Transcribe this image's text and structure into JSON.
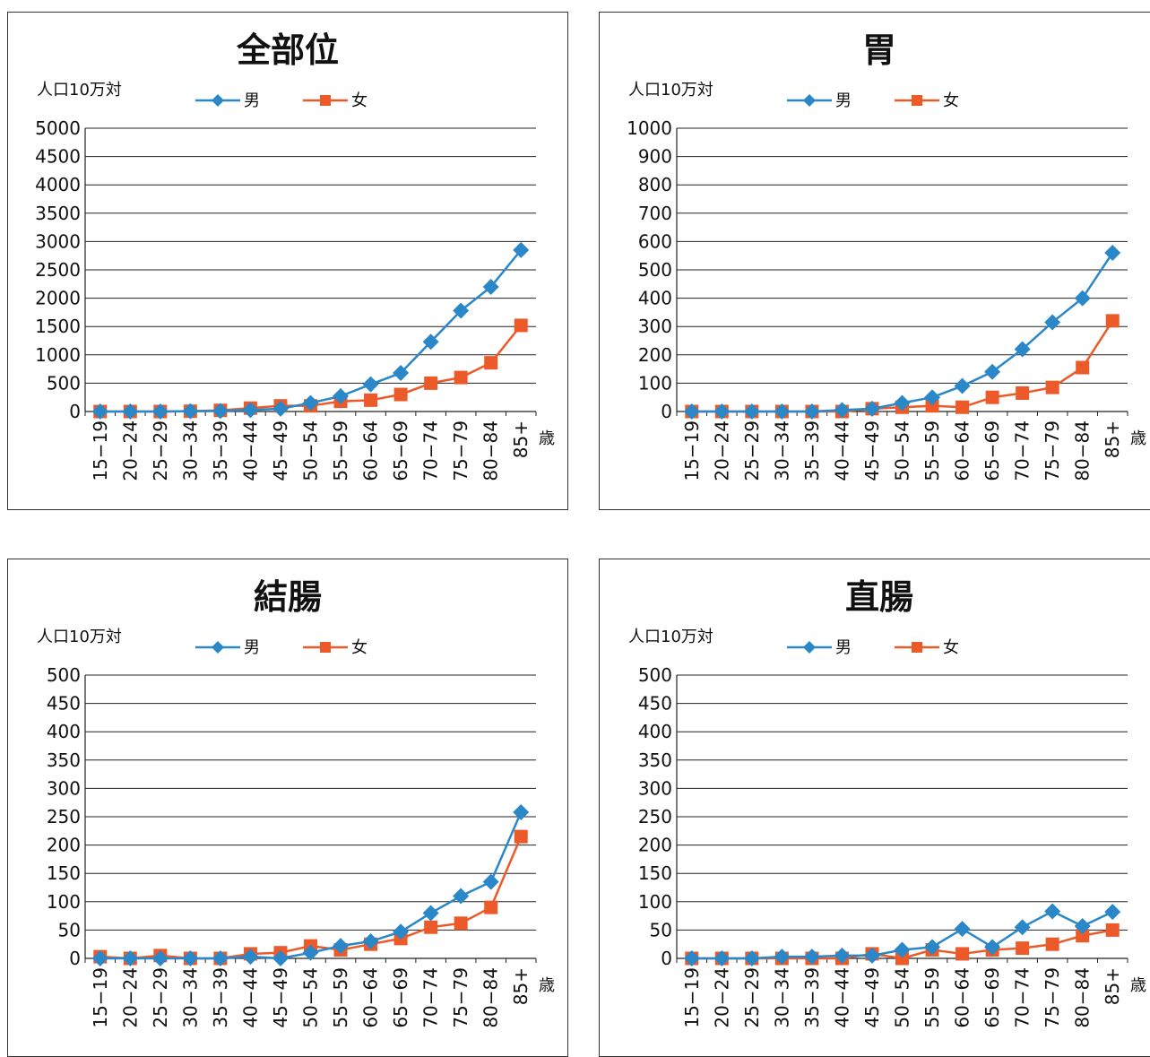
{
  "chart_data": [
    {
      "type": "line",
      "title": "全部位",
      "ylabel": "人口10万対",
      "xunit": "歳",
      "ylim": [
        0,
        5000
      ],
      "yticks": [
        0,
        500,
        1000,
        1500,
        2000,
        2500,
        3000,
        3500,
        4000,
        4500,
        5000
      ],
      "categories": [
        "15−19",
        "20−24",
        "25−29",
        "30−34",
        "35−39",
        "40−44",
        "45−49",
        "50−54",
        "55−59",
        "60−64",
        "65−69",
        "70−74",
        "75−79",
        "80−84",
        "85+"
      ],
      "legend_position": "top",
      "grid": true,
      "series": [
        {
          "name": "男",
          "color": "#2a87c8",
          "marker": "diamond",
          "values": [
            0,
            0,
            0,
            5,
            10,
            25,
            50,
            150,
            270,
            480,
            680,
            1230,
            1780,
            2200,
            2850
          ]
        },
        {
          "name": "女",
          "color": "#ec5a2a",
          "marker": "square",
          "values": [
            0,
            0,
            0,
            5,
            20,
            60,
            100,
            100,
            180,
            200,
            300,
            500,
            600,
            860,
            1520
          ]
        }
      ]
    },
    {
      "type": "line",
      "title": "胃",
      "ylabel": "人口10万対",
      "xunit": "歳",
      "ylim": [
        0,
        1000
      ],
      "yticks": [
        0,
        100,
        200,
        300,
        400,
        500,
        600,
        700,
        800,
        900,
        1000
      ],
      "categories": [
        "15−19",
        "20−24",
        "25−29",
        "30−34",
        "35−39",
        "40−44",
        "45−49",
        "50−54",
        "55−59",
        "60−64",
        "65−69",
        "70−74",
        "75−79",
        "80−84",
        "85+"
      ],
      "legend_position": "top",
      "grid": true,
      "series": [
        {
          "name": "男",
          "color": "#2a87c8",
          "marker": "diamond",
          "values": [
            0,
            0,
            0,
            0,
            0,
            5,
            10,
            30,
            50,
            90,
            140,
            220,
            315,
            400,
            560
          ]
        },
        {
          "name": "女",
          "color": "#ec5a2a",
          "marker": "square",
          "values": [
            0,
            0,
            0,
            0,
            0,
            0,
            10,
            15,
            20,
            15,
            50,
            65,
            85,
            155,
            320
          ]
        }
      ]
    },
    {
      "type": "line",
      "title": "結腸",
      "ylabel": "人口10万対",
      "xunit": "歳",
      "ylim": [
        0,
        500
      ],
      "yticks": [
        0,
        50,
        100,
        150,
        200,
        250,
        300,
        350,
        400,
        450,
        500
      ],
      "categories": [
        "15−19",
        "20−24",
        "25−29",
        "30−34",
        "35−39",
        "40−44",
        "45−49",
        "50−54",
        "55−59",
        "60−64",
        "65−69",
        "70−74",
        "75−79",
        "80−84",
        "85+"
      ],
      "legend_position": "top",
      "grid": true,
      "series": [
        {
          "name": "男",
          "color": "#2a87c8",
          "marker": "diamond",
          "values": [
            0,
            0,
            0,
            0,
            0,
            3,
            0,
            10,
            22,
            30,
            47,
            80,
            110,
            135,
            258
          ]
        },
        {
          "name": "女",
          "color": "#ec5a2a",
          "marker": "square",
          "values": [
            3,
            0,
            5,
            0,
            0,
            8,
            10,
            22,
            15,
            25,
            35,
            55,
            62,
            90,
            215
          ]
        }
      ]
    },
    {
      "type": "line",
      "title": "直腸",
      "ylabel": "人口10万対",
      "xunit": "歳",
      "ylim": [
        0,
        500
      ],
      "yticks": [
        0,
        50,
        100,
        150,
        200,
        250,
        300,
        350,
        400,
        450,
        500
      ],
      "categories": [
        "15−19",
        "20−24",
        "25−29",
        "30−34",
        "35−39",
        "40−44",
        "45−49",
        "50−54",
        "55−59",
        "60−64",
        "65−69",
        "70−74",
        "75−79",
        "80−84",
        "85+"
      ],
      "legend_position": "top",
      "grid": true,
      "series": [
        {
          "name": "男",
          "color": "#2a87c8",
          "marker": "diamond",
          "values": [
            0,
            0,
            0,
            3,
            3,
            5,
            5,
            15,
            20,
            52,
            20,
            55,
            83,
            57,
            82
          ]
        },
        {
          "name": "女",
          "color": "#ec5a2a",
          "marker": "square",
          "values": [
            0,
            0,
            0,
            0,
            0,
            0,
            8,
            0,
            15,
            8,
            15,
            18,
            25,
            40,
            50
          ]
        }
      ]
    }
  ]
}
